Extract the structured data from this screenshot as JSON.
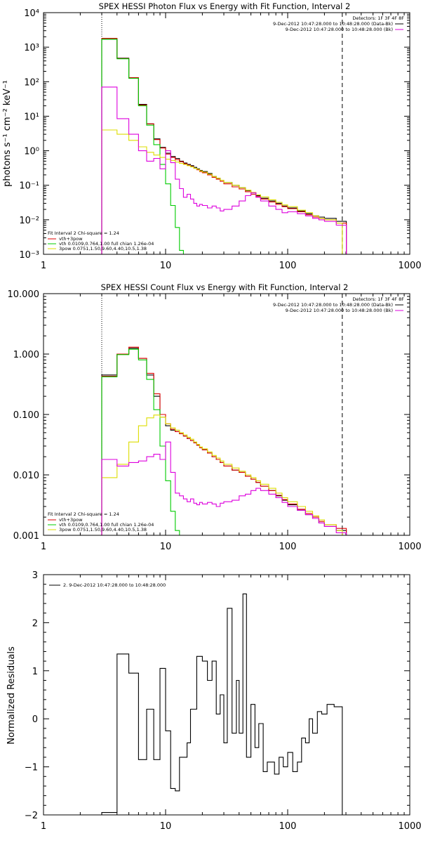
{
  "chart_data": [
    {
      "type": "line",
      "style": "histogram",
      "title": "SPEX HESSI Photon Flux vs Energy with Fit Function, Interval 2",
      "ylabel": "photons s⁻¹ cm⁻² keV⁻¹",
      "xlabel": "",
      "xscale": "log",
      "yscale": "log",
      "xlim": [
        1,
        1000
      ],
      "ylim": [
        0.001,
        10000
      ],
      "x_ticks": [
        "1",
        "10",
        "100",
        "1000"
      ],
      "y_ticks": [
        "10⁻³",
        "10⁻²",
        "10⁻¹",
        "10⁰",
        "10¹",
        "10²",
        "10³",
        "10⁴"
      ],
      "vlines": [
        {
          "x": 3,
          "style": "dotted"
        },
        {
          "x": 280,
          "style": "dashed"
        }
      ],
      "top_legend": {
        "header": "Detectors: 1F 3F 4F 8F",
        "lines": [
          {
            "text": "9-Dec-2012 10:47:28.000 to 10:48:28.000 (Data-Bk)",
            "color": "#000000"
          },
          {
            "text": "9-Dec-2012 10:47:28.000 to 10:48:28.000 (Bk)",
            "color": "#dd00dd"
          }
        ]
      },
      "fit_legend": {
        "header": "Fit Interval 2   Chi-square = 1.24",
        "lines": [
          {
            "text": "vth+3pow",
            "color": "#dd0000"
          },
          {
            "text": "vth 0.0109,0.764,1.00  full chian 1.26e-04",
            "color": "#00cc00"
          },
          {
            "text": "3pow 0.0751,1.50,9.60,4.40,10.5,1.38",
            "color": "#dddd00"
          }
        ]
      },
      "series": [
        {
          "name": "",
          "color": "#000000",
          "x": [
            3,
            3.5,
            4,
            5,
            6,
            7,
            8,
            9,
            10,
            11,
            12,
            13,
            14,
            15,
            16,
            17,
            18,
            19,
            20,
            22,
            24,
            26,
            28,
            30,
            35,
            40,
            45,
            50,
            55,
            60,
            70,
            80,
            90,
            100,
            120,
            140,
            160,
            180,
            200,
            250,
            280
          ],
          "y": [
            1700,
            1700,
            480,
            130,
            22,
            6.0,
            2.2,
            1.25,
            0.85,
            0.68,
            0.6,
            0.5,
            0.44,
            0.4,
            0.37,
            0.33,
            0.3,
            0.27,
            0.25,
            0.22,
            0.18,
            0.16,
            0.14,
            0.12,
            0.1,
            0.085,
            0.07,
            0.06,
            0.05,
            0.042,
            0.035,
            0.03,
            0.025,
            0.022,
            0.018,
            0.015,
            0.013,
            0.012,
            0.011,
            0.009,
            0.009
          ]
        },
        {
          "name": "vth+3pow",
          "color": "#dd0000",
          "x": [
            3,
            3.5,
            4,
            5,
            6,
            7,
            8,
            9,
            10,
            11,
            12,
            13,
            14,
            15,
            16,
            17,
            18,
            19,
            20,
            22,
            24,
            26,
            28,
            30,
            35,
            40,
            45,
            50,
            55,
            60,
            70,
            80,
            90,
            100,
            120,
            140,
            160,
            180,
            200,
            250,
            280
          ],
          "y": [
            1800,
            1800,
            470,
            130,
            21,
            6.0,
            2.1,
            1.2,
            0.8,
            0.64,
            0.55,
            0.48,
            0.42,
            0.38,
            0.35,
            0.31,
            0.28,
            0.25,
            0.23,
            0.2,
            0.17,
            0.15,
            0.13,
            0.11,
            0.09,
            0.078,
            0.065,
            0.055,
            0.047,
            0.04,
            0.033,
            0.028,
            0.024,
            0.021,
            0.017,
            0.014,
            0.012,
            0.011,
            0.01,
            0.008,
            0.008
          ]
        },
        {
          "name": "vth",
          "color": "#00cc00",
          "x": [
            3,
            3.5,
            4,
            5,
            6,
            7,
            8,
            9,
            10,
            11,
            12,
            13,
            14
          ],
          "y": [
            1700,
            1700,
            460,
            125,
            20,
            5.5,
            1.5,
            0.4,
            0.11,
            0.026,
            0.006,
            0.0013,
            0.0007
          ]
        },
        {
          "name": "3pow",
          "color": "#dddd00",
          "x": [
            3,
            3.5,
            4,
            5,
            6,
            7,
            8,
            9,
            10,
            11,
            12,
            13,
            14,
            15,
            16,
            17,
            18,
            19,
            20,
            22,
            24,
            26,
            28,
            30,
            35,
            40,
            45,
            50,
            55,
            60,
            70,
            80,
            90,
            100,
            120,
            140,
            160,
            180,
            200,
            250,
            280
          ],
          "y": [
            4.0,
            4.0,
            3.0,
            2.0,
            1.3,
            0.9,
            0.75,
            0.64,
            0.57,
            0.52,
            0.47,
            0.43,
            0.4,
            0.37,
            0.34,
            0.31,
            0.29,
            0.26,
            0.24,
            0.21,
            0.18,
            0.16,
            0.14,
            0.12,
            0.1,
            0.085,
            0.072,
            0.062,
            0.053,
            0.046,
            0.038,
            0.032,
            0.027,
            0.024,
            0.019,
            0.016,
            0.013,
            0.011,
            0.01,
            0.008,
            0.0007
          ]
        },
        {
          "name": "",
          "color": "#dd00dd",
          "x": [
            3,
            3.5,
            4,
            5,
            6,
            7,
            8,
            9,
            10,
            11,
            12,
            13,
            14,
            15,
            16,
            17,
            18,
            19,
            20,
            22,
            24,
            26,
            28,
            30,
            35,
            40,
            45,
            50,
            55,
            60,
            70,
            80,
            90,
            100,
            120,
            140,
            160,
            180,
            200,
            250,
            280
          ],
          "y": [
            70,
            70,
            8.5,
            3.0,
            1.0,
            0.5,
            0.6,
            0.3,
            1.0,
            0.45,
            0.15,
            0.08,
            0.045,
            0.055,
            0.04,
            0.03,
            0.025,
            0.028,
            0.026,
            0.022,
            0.025,
            0.022,
            0.018,
            0.02,
            0.025,
            0.035,
            0.05,
            0.06,
            0.045,
            0.035,
            0.025,
            0.02,
            0.016,
            0.017,
            0.015,
            0.013,
            0.011,
            0.01,
            0.009,
            0.007,
            0.007
          ]
        }
      ]
    },
    {
      "type": "line",
      "style": "histogram",
      "title": "SPEX HESSI Count Flux vs Energy with Fit Function, Interval 2",
      "xlabel": "",
      "ylabel": "",
      "xscale": "log",
      "yscale": "log",
      "xlim": [
        1,
        1000
      ],
      "ylim": [
        0.001,
        10
      ],
      "x_ticks": [
        "1",
        "10",
        "100",
        "1000"
      ],
      "y_ticks": [
        "0.001",
        "0.010",
        "0.100",
        "1.000",
        "10.000"
      ],
      "vlines": [
        {
          "x": 3,
          "style": "dotted"
        },
        {
          "x": 280,
          "style": "dashed"
        }
      ],
      "top_legend": {
        "header": "Detectors: 1F 3F 4F 8F",
        "lines": [
          {
            "text": "9-Dec-2012 10:47:28.000 to 10:48:28.000 (Data-Bk)",
            "color": "#000000"
          },
          {
            "text": "9-Dec-2012 10:47:28.000 to 10:48:28.000 (Bk)",
            "color": "#dd00dd"
          }
        ]
      },
      "fit_legend": {
        "header": "Fit Interval 2   Chi-square = 1.24",
        "lines": [
          {
            "text": "vth+3pow",
            "color": "#dd0000"
          },
          {
            "text": "vth 0.0109,0.764,1.00  full chian 1.26e-04",
            "color": "#00cc00"
          },
          {
            "text": "3pow 0.0751,1.50,9.60,4.40,10.5,1.38",
            "color": "#dddd00"
          }
        ]
      },
      "series": [
        {
          "name": "",
          "color": "#000000",
          "x": [
            3,
            3.5,
            4,
            5,
            6,
            7,
            8,
            9,
            10,
            11,
            12,
            13,
            14,
            15,
            16,
            17,
            18,
            19,
            20,
            22,
            24,
            26,
            28,
            30,
            35,
            40,
            45,
            50,
            55,
            60,
            70,
            80,
            90,
            100,
            120,
            140,
            160,
            180,
            200,
            250,
            280
          ],
          "y": [
            0.45,
            0.45,
            1.0,
            1.25,
            0.85,
            0.45,
            0.2,
            0.09,
            0.065,
            0.055,
            0.052,
            0.048,
            0.044,
            0.04,
            0.037,
            0.034,
            0.031,
            0.028,
            0.026,
            0.023,
            0.02,
            0.018,
            0.016,
            0.014,
            0.012,
            0.011,
            0.0095,
            0.0085,
            0.0075,
            0.0065,
            0.0055,
            0.0045,
            0.0038,
            0.0032,
            0.0026,
            0.0022,
            0.0019,
            0.0016,
            0.0014,
            0.0012,
            0.0012
          ]
        },
        {
          "name": "vth+3pow",
          "color": "#dd0000",
          "x": [
            3,
            3.5,
            4,
            5,
            6,
            7,
            8,
            9,
            10,
            11,
            12,
            13,
            14,
            15,
            16,
            17,
            18,
            19,
            20,
            22,
            24,
            26,
            28,
            30,
            35,
            40,
            45,
            50,
            55,
            60,
            70,
            80,
            90,
            100,
            120,
            140,
            160,
            180,
            200,
            250,
            280
          ],
          "y": [
            0.43,
            0.43,
            1.0,
            1.3,
            0.85,
            0.48,
            0.22,
            0.1,
            0.07,
            0.057,
            0.052,
            0.048,
            0.044,
            0.04,
            0.037,
            0.034,
            0.031,
            0.028,
            0.026,
            0.023,
            0.02,
            0.018,
            0.016,
            0.014,
            0.012,
            0.011,
            0.0095,
            0.0085,
            0.0075,
            0.0065,
            0.0055,
            0.0046,
            0.0039,
            0.0033,
            0.0027,
            0.0023,
            0.002,
            0.0017,
            0.0015,
            0.0013,
            0.0013
          ]
        },
        {
          "name": "vth",
          "color": "#00cc00",
          "x": [
            3,
            3.5,
            4,
            5,
            6,
            7,
            8,
            9,
            10,
            11,
            12,
            13
          ],
          "y": [
            0.42,
            0.42,
            0.98,
            1.2,
            0.8,
            0.38,
            0.12,
            0.03,
            0.008,
            0.0025,
            0.0012,
            0.0007
          ]
        },
        {
          "name": "3pow",
          "color": "#dddd00",
          "x": [
            3,
            3.5,
            4,
            5,
            6,
            7,
            8,
            9,
            10,
            11,
            12,
            13,
            14,
            15,
            16,
            17,
            18,
            19,
            20,
            22,
            24,
            26,
            28,
            30,
            35,
            40,
            45,
            50,
            55,
            60,
            70,
            80,
            90,
            100,
            120,
            140,
            160,
            180,
            200,
            250,
            280
          ],
          "y": [
            0.009,
            0.009,
            0.015,
            0.035,
            0.065,
            0.088,
            0.098,
            0.09,
            0.07,
            0.06,
            0.055,
            0.05,
            0.046,
            0.042,
            0.039,
            0.035,
            0.032,
            0.029,
            0.027,
            0.024,
            0.021,
            0.019,
            0.017,
            0.015,
            0.013,
            0.0115,
            0.01,
            0.009,
            0.008,
            0.007,
            0.006,
            0.005,
            0.0042,
            0.0036,
            0.003,
            0.0025,
            0.0021,
            0.0018,
            0.0015,
            0.0012,
            0.0008
          ]
        },
        {
          "name": "",
          "color": "#dd00dd",
          "x": [
            3,
            3.5,
            4,
            5,
            6,
            7,
            8,
            9,
            10,
            11,
            12,
            13,
            14,
            15,
            16,
            17,
            18,
            19,
            20,
            22,
            24,
            26,
            28,
            30,
            35,
            40,
            45,
            50,
            55,
            60,
            70,
            80,
            90,
            100,
            120,
            140,
            160,
            180,
            200,
            250,
            280
          ],
          "y": [
            0.018,
            0.018,
            0.014,
            0.016,
            0.017,
            0.02,
            0.022,
            0.018,
            0.035,
            0.011,
            0.005,
            0.0045,
            0.004,
            0.0036,
            0.004,
            0.0034,
            0.0032,
            0.0035,
            0.0033,
            0.0035,
            0.0033,
            0.003,
            0.0034,
            0.0036,
            0.0038,
            0.0045,
            0.0048,
            0.0055,
            0.006,
            0.0055,
            0.0048,
            0.0042,
            0.0035,
            0.003,
            0.0026,
            0.0022,
            0.0019,
            0.0016,
            0.0014,
            0.0011,
            0.0011
          ]
        }
      ]
    },
    {
      "type": "line",
      "style": "histogram",
      "title": "",
      "xlabel": "",
      "ylabel": "Normalized Residuals",
      "xscale": "log",
      "yscale": "linear",
      "xlim": [
        1,
        1000
      ],
      "ylim": [
        -2,
        3
      ],
      "x_ticks": [
        "1",
        "10",
        "100",
        "1000"
      ],
      "y_ticks": [
        "−2",
        "−1",
        "0",
        "1",
        "2",
        "3"
      ],
      "legend": "2.  9-Dec-2012 10:47:28.000 to 10:48:28.000",
      "series": [
        {
          "name": "",
          "color": "#000000",
          "x": [
            3,
            4,
            5,
            6,
            7,
            8,
            9,
            10,
            11,
            12,
            13,
            14,
            15,
            16,
            18,
            20,
            22,
            24,
            26,
            28,
            30,
            32,
            35,
            38,
            40,
            43,
            46,
            50,
            54,
            58,
            63,
            68,
            73,
            78,
            85,
            92,
            100,
            110,
            120,
            130,
            140,
            150,
            160,
            175,
            190,
            210,
            240,
            280
          ],
          "y": [
            -1.95,
            1.35,
            0.95,
            -0.85,
            0.2,
            -0.85,
            1.05,
            -0.25,
            -1.45,
            -1.5,
            -0.8,
            -0.8,
            -0.5,
            0.2,
            1.3,
            1.2,
            0.8,
            1.2,
            0.1,
            0.5,
            -0.5,
            2.3,
            -0.3,
            0.8,
            -0.3,
            2.6,
            -0.8,
            0.3,
            -0.6,
            -0.1,
            -1.1,
            -0.9,
            -0.9,
            -1.15,
            -0.8,
            -1.0,
            -0.7,
            -1.1,
            -0.9,
            -0.4,
            -0.5,
            0.0,
            -0.3,
            0.15,
            0.1,
            0.3,
            0.25,
            -2.0
          ]
        }
      ]
    }
  ]
}
